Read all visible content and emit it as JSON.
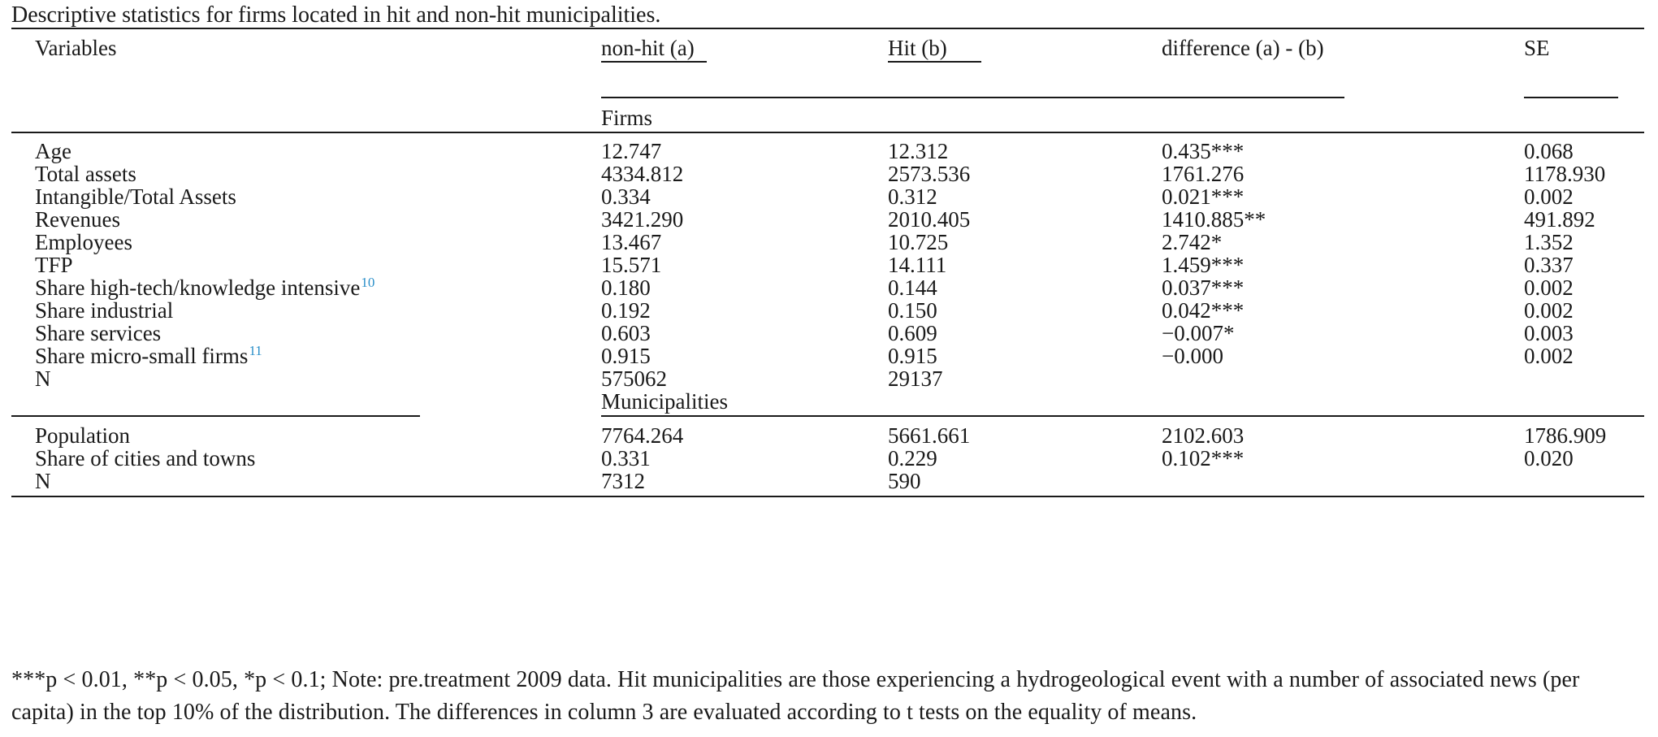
{
  "caption": "Descriptive statistics for firms located in hit and non-hit municipalities.",
  "headers": {
    "variables": "Variables",
    "nonhit": "non-hit (a)",
    "hit": "Hit (b)",
    "difference": "difference (a) - (b)",
    "se": "SE"
  },
  "sections": {
    "firms": "Firms",
    "municipalities": "Municipalities"
  },
  "firms_rows": [
    {
      "label": "Age",
      "sup": "",
      "nonhit": "12.747",
      "hit": "12.312",
      "diff": "0.435***",
      "se": "0.068"
    },
    {
      "label": "Total assets",
      "sup": "",
      "nonhit": "4334.812",
      "hit": "2573.536",
      "diff": "1761.276",
      "se": "1178.930"
    },
    {
      "label": "Intangible/Total Assets",
      "sup": "",
      "nonhit": "0.334",
      "hit": "0.312",
      "diff": "0.021***",
      "se": "0.002"
    },
    {
      "label": "Revenues",
      "sup": "",
      "nonhit": "3421.290",
      "hit": "2010.405",
      "diff": "1410.885**",
      "se": "491.892"
    },
    {
      "label": "Employees",
      "sup": "",
      "nonhit": "13.467",
      "hit": "10.725",
      "diff": "2.742*",
      "se": "1.352"
    },
    {
      "label": "TFP",
      "sup": "",
      "nonhit": "15.571",
      "hit": "14.111",
      "diff": "1.459***",
      "se": "0.337"
    },
    {
      "label": "Share high-tech/knowledge intensive",
      "sup": "10",
      "nonhit": "0.180",
      "hit": "0.144",
      "diff": "0.037***",
      "se": "0.002"
    },
    {
      "label": "Share industrial",
      "sup": "",
      "nonhit": "0.192",
      "hit": "0.150",
      "diff": "0.042***",
      "se": "0.002"
    },
    {
      "label": "Share services",
      "sup": "",
      "nonhit": "0.603",
      "hit": "0.609",
      "diff": "−0.007*",
      "se": "0.003"
    },
    {
      "label": "Share micro-small firms",
      "sup": "11",
      "nonhit": "0.915",
      "hit": "0.915",
      "diff": "−0.000",
      "se": "0.002"
    },
    {
      "label": "N",
      "sup": "",
      "nonhit": "575062",
      "hit": "29137",
      "diff": "",
      "se": ""
    }
  ],
  "muni_rows": [
    {
      "label": "Population",
      "nonhit": "7764.264",
      "hit": "5661.661",
      "diff": "2102.603",
      "se": "1786.909"
    },
    {
      "label": "Share of cities and towns",
      "nonhit": "0.331",
      "hit": "0.229",
      "diff": "0.102***",
      "se": "0.020"
    },
    {
      "label": "N",
      "nonhit": "7312",
      "hit": "590",
      "diff": "",
      "se": ""
    }
  ],
  "footnote": "***p < 0.01, **p < 0.05, *p < 0.1; Note: pre.treatment 2009 data. Hit municipalities are those experiencing a hydrogeological event with a number of associated news (per capita) in the top 10% of the distribution. The differences in column 3 are evaluated according to t tests on the equality of means.",
  "colors": {
    "text": "#1a1a1a",
    "superscript": "#2a8fc9"
  }
}
